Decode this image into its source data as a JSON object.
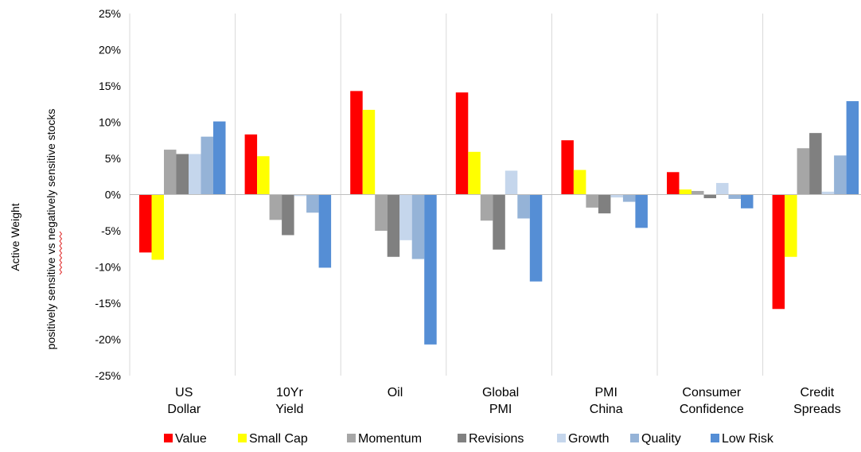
{
  "chart_data": {
    "type": "bar",
    "ylabel": "Active Weight",
    "ylabel_sub": "positively sensitive vs negatively sensitive stocks",
    "ylim": [
      -25,
      25
    ],
    "y_ticks": [
      25,
      20,
      15,
      10,
      5,
      0,
      -5,
      -10,
      -15,
      -20,
      -25
    ],
    "y_tick_labels": [
      "25%",
      "20%",
      "15%",
      "10%",
      "5%",
      "0%",
      "-5%",
      "-10%",
      "-15%",
      "-20%",
      "-25%"
    ],
    "categories": [
      [
        "US",
        "Dollar"
      ],
      [
        "10Yr",
        "Yield"
      ],
      [
        "Oil"
      ],
      [
        "Global",
        "PMI"
      ],
      [
        "PMI",
        "China"
      ],
      [
        "Consumer",
        "Confidence"
      ],
      [
        "Credit",
        "Spreads"
      ]
    ],
    "legend_position": "bottom",
    "grid": "vertical category separators only",
    "series": [
      {
        "name": "Value",
        "color": "#ff0000",
        "values": [
          -8.0,
          8.3,
          14.3,
          14.1,
          7.5,
          3.1,
          -15.8
        ]
      },
      {
        "name": "Small Cap",
        "color": "#ffff00",
        "values": [
          -9.0,
          5.3,
          11.7,
          5.9,
          3.4,
          0.7,
          -8.6
        ]
      },
      {
        "name": "Momentum",
        "color": "#a6a6a6",
        "values": [
          6.2,
          -3.5,
          -5.0,
          -3.6,
          -1.8,
          0.5,
          6.4
        ]
      },
      {
        "name": "Revisions",
        "color": "#808080",
        "values": [
          5.6,
          -5.6,
          -8.6,
          -7.6,
          -2.6,
          -0.5,
          8.5
        ]
      },
      {
        "name": "Growth",
        "color": "#c5d6ec",
        "values": [
          5.6,
          -0.2,
          -6.3,
          3.3,
          -0.4,
          1.6,
          0.4
        ]
      },
      {
        "name": "Quality",
        "color": "#95b3d7",
        "values": [
          8.0,
          -2.5,
          -8.9,
          -3.3,
          -1.0,
          -0.6,
          5.4
        ]
      },
      {
        "name": "Low Risk",
        "color": "#558ed5",
        "values": [
          10.1,
          -10.1,
          -20.7,
          -12.0,
          -4.6,
          -1.9,
          12.9
        ]
      }
    ]
  }
}
